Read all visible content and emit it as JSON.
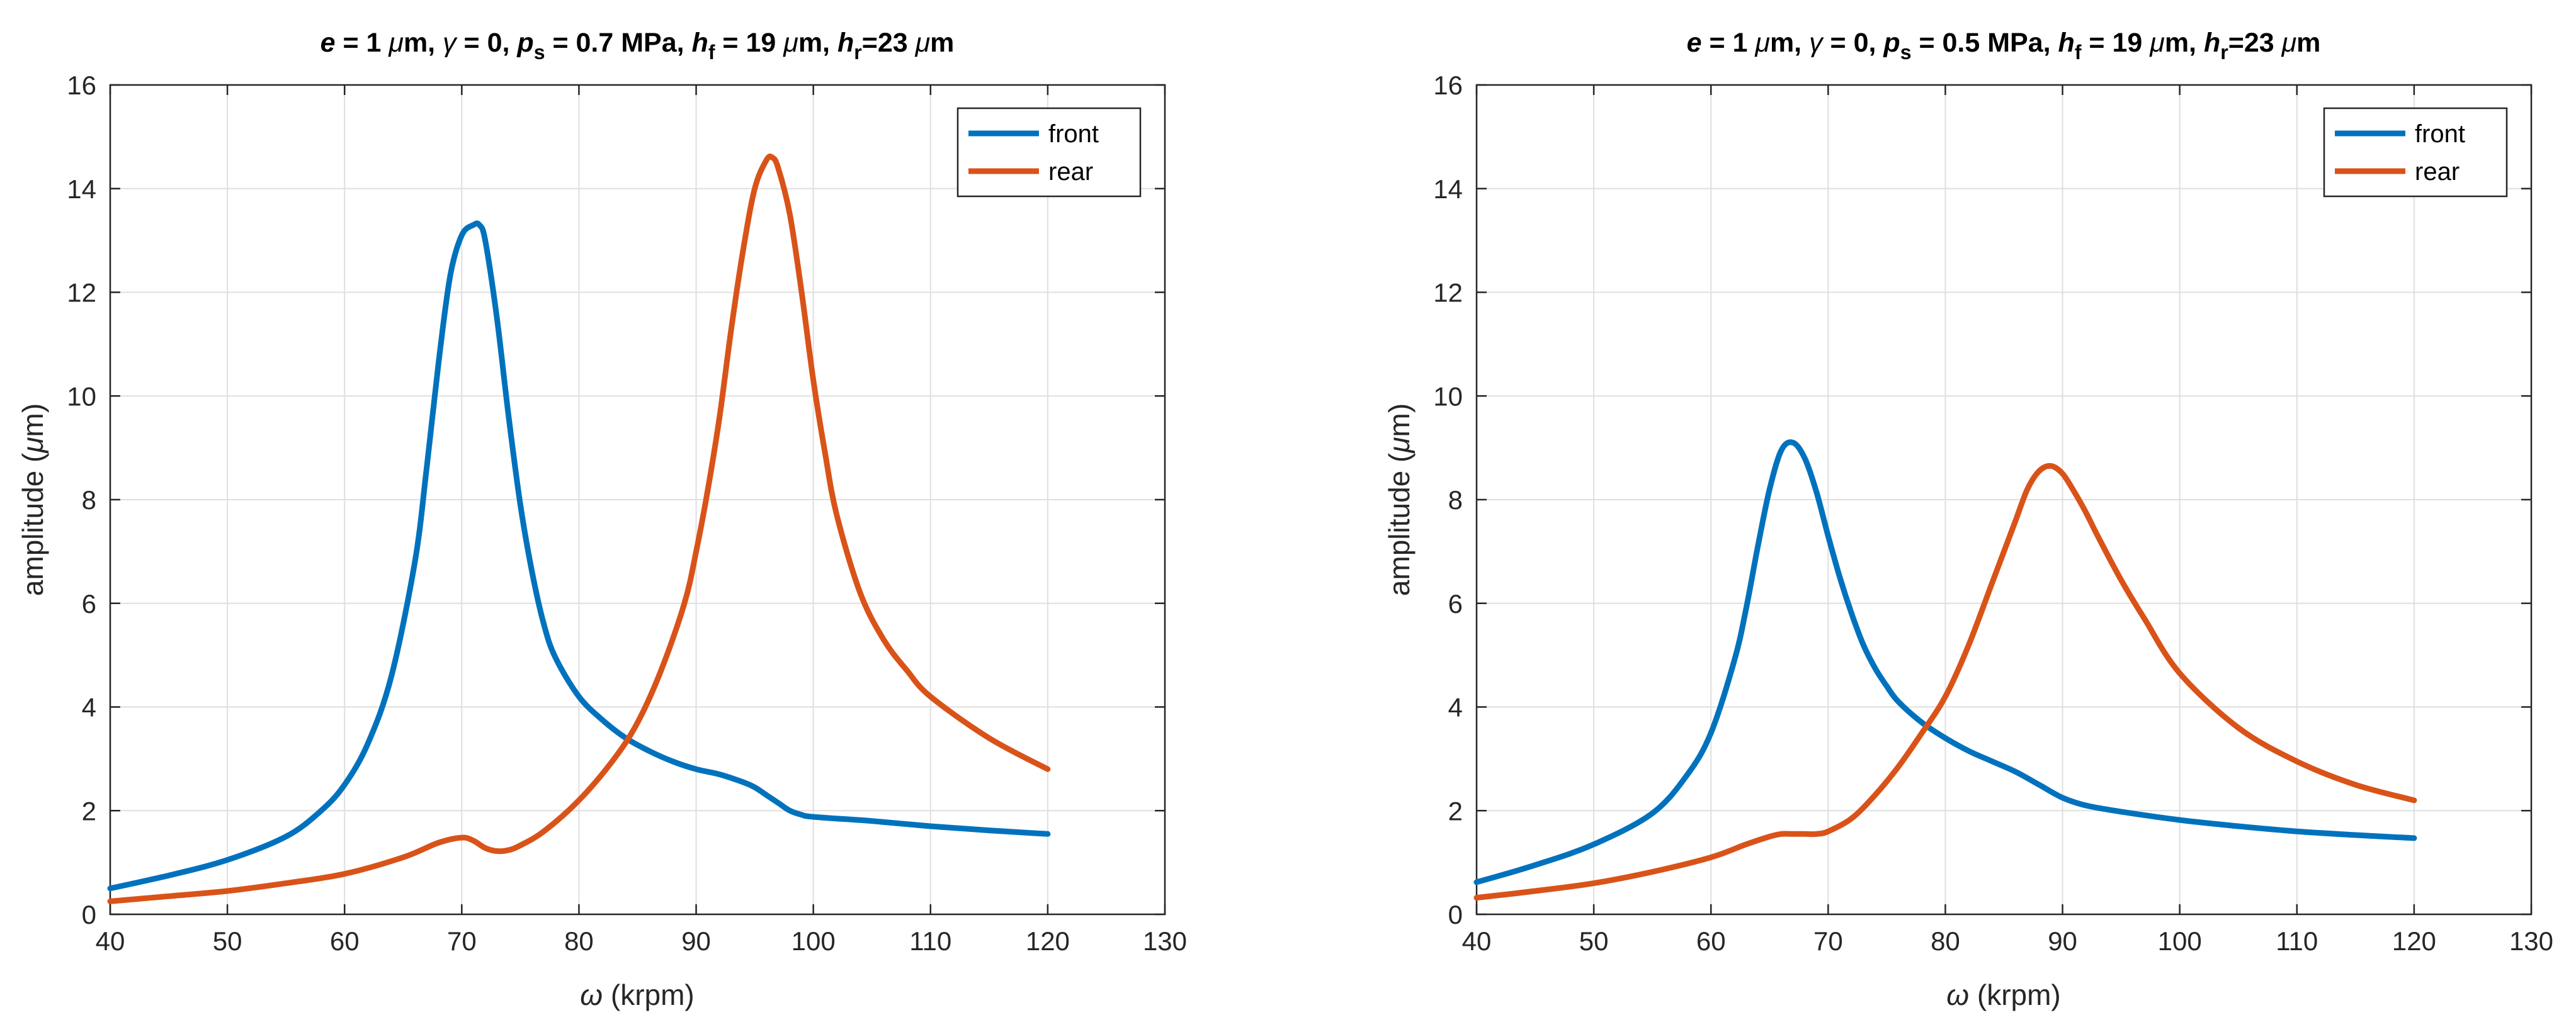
{
  "chart_data": [
    {
      "type": "line",
      "title_parts": {
        "e": "e",
        "e_val": " = 1 ",
        "mu1": "μ",
        "m1": "m, ",
        "gamma": "γ",
        "gamma_val": " = 0,  ",
        "p": "p",
        "p_sub": "s",
        "p_val": " = 0.7 MPa,  ",
        "h1": "h",
        "h1_sub": "f",
        "h1_val": " = 19 ",
        "mu2": "μ",
        "m2": "m,  ",
        "h2": "h",
        "h2_sub": "r",
        "h2_val": "=23 ",
        "mu3": "μ",
        "m3": "m"
      },
      "xlabel_parts": {
        "sym": "ω",
        "text": " (krpm)"
      },
      "ylabel_parts": {
        "text": "amplitude (",
        "sym": "μ",
        "close": "m)"
      },
      "xlim": [
        40,
        130
      ],
      "ylim": [
        0,
        16
      ],
      "xticks": [
        40,
        50,
        60,
        70,
        80,
        90,
        100,
        110,
        120,
        130
      ],
      "yticks": [
        0,
        2,
        4,
        6,
        8,
        10,
        12,
        14,
        16
      ],
      "grid": true,
      "legend_position": "top-right",
      "series": [
        {
          "name": "front",
          "color": "#0072BD",
          "x": [
            40,
            45,
            50,
            55,
            58,
            60,
            62,
            64,
            66,
            67,
            68,
            69,
            70,
            71,
            71.5,
            72,
            73,
            74,
            75,
            76,
            77,
            78,
            80,
            82,
            84,
            86,
            88,
            90,
            92,
            94,
            95,
            96,
            97,
            98,
            99,
            100,
            105,
            110,
            115,
            120
          ],
          "y": [
            0.5,
            0.75,
            1.05,
            1.5,
            2.0,
            2.5,
            3.3,
            4.6,
            6.8,
            8.6,
            10.6,
            12.3,
            13.1,
            13.3,
            13.3,
            13.0,
            11.5,
            9.6,
            7.9,
            6.6,
            5.6,
            4.95,
            4.2,
            3.75,
            3.4,
            3.15,
            2.95,
            2.8,
            2.7,
            2.55,
            2.45,
            2.3,
            2.15,
            2.0,
            1.92,
            1.88,
            1.8,
            1.7,
            1.62,
            1.55
          ]
        },
        {
          "name": "rear",
          "color": "#D95319",
          "x": [
            40,
            45,
            50,
            55,
            60,
            65,
            68,
            70,
            71,
            72,
            73,
            74,
            75,
            77,
            80,
            83,
            85,
            87,
            89,
            90,
            91,
            92,
            93,
            94,
            95,
            96,
            96.5,
            97,
            98,
            99,
            100,
            101,
            102,
            104,
            106,
            108,
            110,
            115,
            120
          ],
          "y": [
            0.25,
            0.35,
            0.45,
            0.6,
            0.78,
            1.1,
            1.38,
            1.48,
            1.42,
            1.28,
            1.22,
            1.24,
            1.33,
            1.6,
            2.2,
            3.0,
            3.7,
            4.7,
            6.0,
            7.0,
            8.2,
            9.6,
            11.3,
            12.8,
            14.0,
            14.55,
            14.6,
            14.4,
            13.5,
            12.0,
            10.3,
            8.9,
            7.7,
            6.2,
            5.3,
            4.7,
            4.2,
            3.4,
            2.8
          ]
        }
      ]
    },
    {
      "type": "line",
      "title_parts": {
        "e": "e",
        "e_val": " = 1 ",
        "mu1": "μ",
        "m1": "m, ",
        "gamma": "γ",
        "gamma_val": " = 0,  ",
        "p": "p",
        "p_sub": "s",
        "p_val": " = 0.5 MPa,  ",
        "h1": "h",
        "h1_sub": "f",
        "h1_val": " = 19 ",
        "mu2": "μ",
        "m2": "m,  ",
        "h2": "h",
        "h2_sub": "r",
        "h2_val": "=23 ",
        "mu3": "μ",
        "m3": "m"
      },
      "xlabel_parts": {
        "sym": "ω",
        "text": " (krpm)"
      },
      "ylabel_parts": {
        "text": "amplitude (",
        "sym": "μ",
        "close": "m)"
      },
      "xlim": [
        40,
        130
      ],
      "ylim": [
        0,
        16
      ],
      "xticks": [
        40,
        50,
        60,
        70,
        80,
        90,
        100,
        110,
        120,
        130
      ],
      "yticks": [
        0,
        2,
        4,
        6,
        8,
        10,
        12,
        14,
        16
      ],
      "grid": true,
      "legend_position": "top-right",
      "series": [
        {
          "name": "front",
          "color": "#0072BD",
          "x": [
            40,
            45,
            50,
            55,
            58,
            60,
            62,
            63,
            64,
            65,
            66,
            67,
            68,
            69,
            70,
            71,
            72,
            73,
            74,
            75,
            76,
            78,
            80,
            82,
            84,
            86,
            88,
            90,
            92,
            95,
            100,
            105,
            110,
            115,
            120
          ],
          "y": [
            0.62,
            0.95,
            1.35,
            1.95,
            2.7,
            3.5,
            4.9,
            5.9,
            7.1,
            8.2,
            8.95,
            9.1,
            8.8,
            8.15,
            7.3,
            6.5,
            5.8,
            5.2,
            4.75,
            4.4,
            4.1,
            3.7,
            3.4,
            3.15,
            2.95,
            2.75,
            2.5,
            2.25,
            2.1,
            1.98,
            1.82,
            1.7,
            1.6,
            1.53,
            1.47
          ]
        },
        {
          "name": "rear",
          "color": "#D95319",
          "x": [
            40,
            45,
            50,
            55,
            60,
            63,
            65,
            66,
            67,
            68,
            69,
            70,
            72,
            74,
            76,
            78,
            80,
            82,
            84,
            85,
            86,
            87,
            88,
            89,
            90,
            91,
            92,
            93,
            95,
            97,
            100,
            105,
            110,
            115,
            120
          ],
          "y": [
            0.32,
            0.45,
            0.6,
            0.82,
            1.1,
            1.35,
            1.5,
            1.55,
            1.55,
            1.55,
            1.55,
            1.6,
            1.85,
            2.3,
            2.85,
            3.5,
            4.2,
            5.2,
            6.4,
            7.0,
            7.6,
            8.2,
            8.55,
            8.65,
            8.5,
            8.15,
            7.75,
            7.3,
            6.45,
            5.7,
            4.65,
            3.6,
            2.95,
            2.5,
            2.2
          ]
        }
      ]
    }
  ]
}
